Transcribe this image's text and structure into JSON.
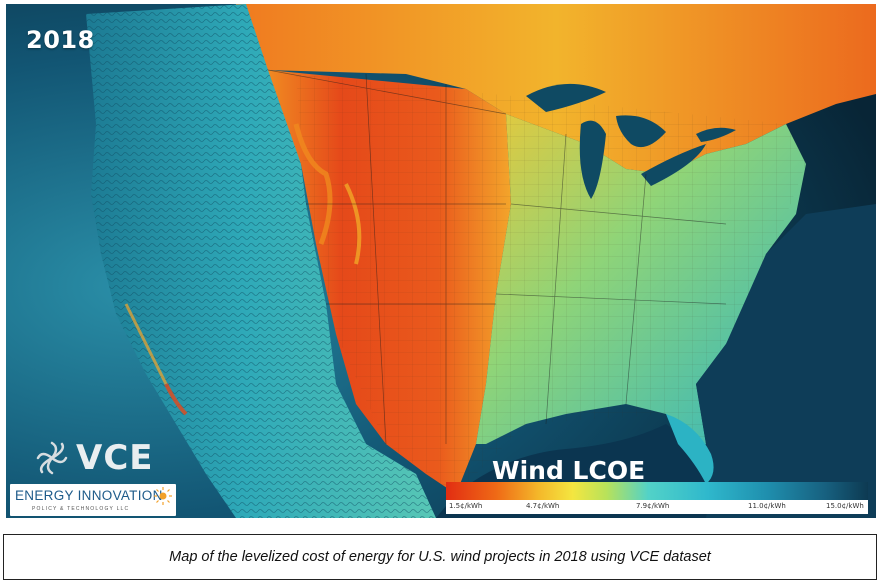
{
  "map": {
    "year": "2018",
    "logo_vce": "VCE",
    "logo_energy_innovation": "ENERGY INNOVATION",
    "logo_energy_innovation_sub": "POLICY & TECHNOLOGY LLC",
    "legend": {
      "title": "Wind LCOE",
      "ticks": [
        "1.5¢/kWh",
        "4.7¢/kWh",
        "7.9¢/kWh",
        "11.0¢/kWh",
        "15.0¢/kWh"
      ]
    },
    "colors": {
      "low_cost": "#e22d12",
      "mid_cost": "#f4e640",
      "high_cost": "#17607f",
      "water": "#0b2f45"
    }
  },
  "caption": "Map of the levelized cost of energy for U.S. wind projects in 2018 using VCE dataset"
}
